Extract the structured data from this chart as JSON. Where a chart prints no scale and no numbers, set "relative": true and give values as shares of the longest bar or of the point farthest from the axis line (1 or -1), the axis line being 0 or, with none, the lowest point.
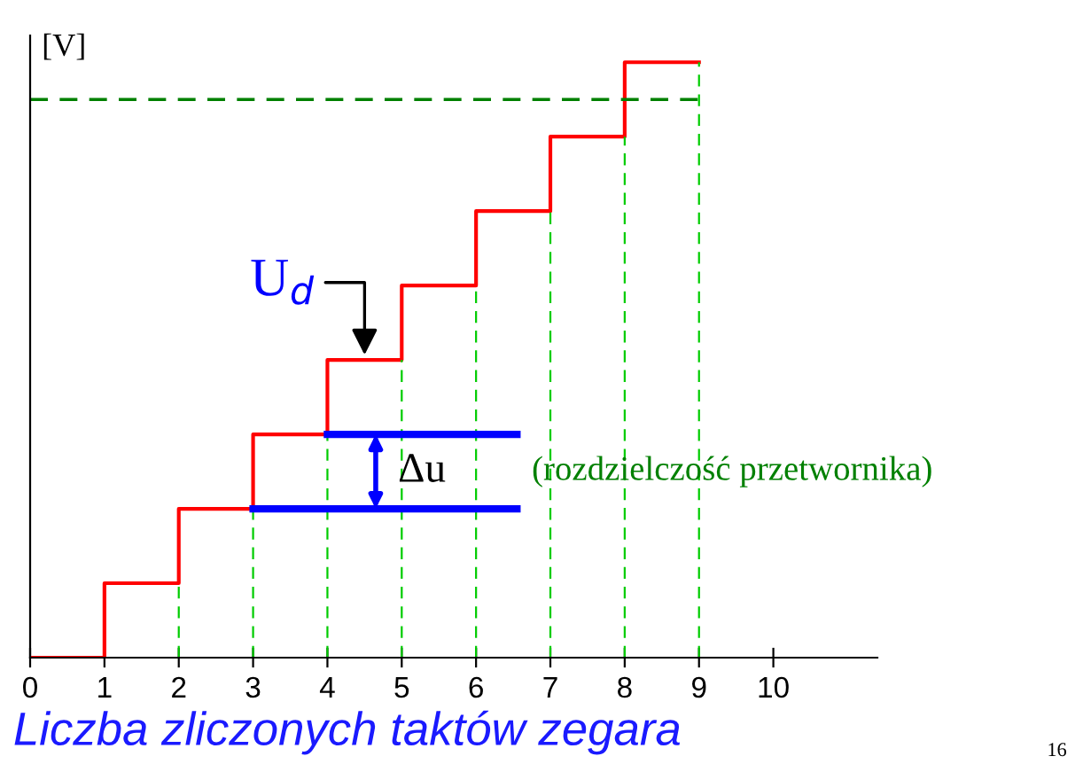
{
  "chart_data": {
    "type": "step",
    "relative": true,
    "xlabel": "Liczba zliczonych taktów zegara",
    "ylabel": "[V]",
    "x": [
      0,
      1,
      2,
      3,
      4,
      5,
      6,
      7,
      8,
      9
    ],
    "series": [
      {
        "color": "#ff0000",
        "values": [
          0,
          0.125,
          0.25,
          0.375,
          0.5,
          0.625,
          0.75,
          0.875,
          1,
          1
        ]
      }
    ],
    "xlim": [
      0,
      11.4
    ],
    "xticks": [
      0,
      1,
      2,
      3,
      4,
      5,
      6,
      7,
      8,
      9,
      10
    ],
    "ref_lines": [
      {
        "axis": "y",
        "value": 0.9375,
        "color": "#008000",
        "line_style": "dashed"
      },
      {
        "axis": "x",
        "value": 2,
        "color": "#00cc00",
        "line_style": "dashed"
      },
      {
        "axis": "x",
        "value": 3,
        "color": "#00cc00",
        "line_style": "dashed"
      },
      {
        "axis": "x",
        "value": 4,
        "color": "#00cc00",
        "line_style": "dashed"
      },
      {
        "axis": "x",
        "value": 5,
        "color": "#00cc00",
        "line_style": "dashed"
      },
      {
        "axis": "x",
        "value": 6,
        "color": "#00cc00",
        "line_style": "dashed"
      },
      {
        "axis": "x",
        "value": 7,
        "color": "#00cc00",
        "line_style": "dashed"
      },
      {
        "axis": "x",
        "value": 8,
        "color": "#00cc00",
        "line_style": "dashed"
      },
      {
        "axis": "x",
        "value": 9,
        "color": "#00cc00",
        "line_style": "dashed"
      },
      {
        "axis": "y",
        "value": 0.25,
        "color": "#0000ff",
        "line_style": "solid"
      },
      {
        "axis": "y",
        "value": 0.375,
        "color": "#0000ff",
        "line_style": "solid"
      }
    ],
    "annotations": [
      {
        "text": "U$_{d}$",
        "x": 4.5,
        "y": 0.5
      },
      "Δu",
      "(rozdzielczość przetwornika)",
      "16"
    ],
    "grid": false
  }
}
